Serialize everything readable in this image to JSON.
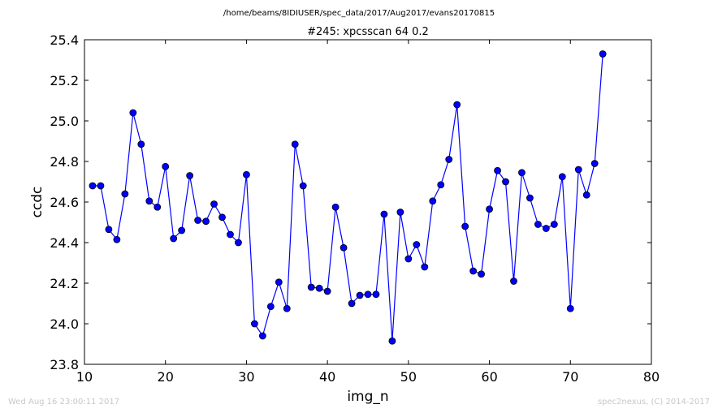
{
  "suptitle": "/home/beams/8IDIUSER/spec_data/2017/Aug2017/evans20170815",
  "footer_left": "Wed Aug 16 23:00:11 2017",
  "footer_right": "spec2nexus, (C) 2014-2017",
  "chart_data": {
    "type": "line",
    "title": "#245: xpcsscan 64 0.2",
    "xlabel": "img_n",
    "ylabel": "ccdc",
    "xlim": [
      10,
      80
    ],
    "ylim": [
      23.8,
      25.4
    ],
    "xticks": [
      10,
      20,
      30,
      40,
      50,
      60,
      70,
      80
    ],
    "yticks": [
      23.8,
      24.0,
      24.2,
      24.4,
      24.6,
      24.8,
      25.0,
      25.2,
      25.4
    ],
    "grid": false,
    "line_color": "#0000ff",
    "marker": "circle",
    "x": [
      11,
      12,
      13,
      14,
      15,
      16,
      17,
      18,
      19,
      20,
      21,
      22,
      23,
      24,
      25,
      26,
      27,
      28,
      29,
      30,
      31,
      32,
      33,
      34,
      35,
      36,
      37,
      38,
      39,
      40,
      41,
      42,
      43,
      44,
      45,
      46,
      47,
      48,
      49,
      50,
      51,
      52,
      53,
      54,
      55,
      56,
      57,
      58,
      59,
      60,
      61,
      62,
      63,
      64,
      65,
      66,
      67,
      68,
      69,
      70,
      71,
      72,
      73,
      74
    ],
    "y": [
      24.68,
      24.68,
      24.465,
      24.415,
      24.64,
      25.04,
      24.885,
      24.605,
      24.575,
      24.775,
      24.42,
      24.46,
      24.73,
      24.51,
      24.505,
      24.59,
      24.525,
      24.44,
      24.4,
      24.735,
      24.0,
      23.94,
      24.085,
      24.205,
      24.075,
      24.885,
      24.68,
      24.18,
      24.175,
      24.16,
      24.575,
      24.375,
      24.1,
      24.14,
      24.145,
      24.145,
      24.54,
      23.915,
      24.55,
      24.32,
      24.39,
      24.28,
      24.605,
      24.685,
      24.81,
      25.08,
      24.48,
      24.26,
      24.245,
      24.565,
      24.755,
      24.7,
      24.21,
      24.745,
      24.62,
      24.49,
      24.47,
      24.49,
      24.725,
      24.075,
      24.76,
      24.635,
      24.79,
      25.33
    ]
  }
}
